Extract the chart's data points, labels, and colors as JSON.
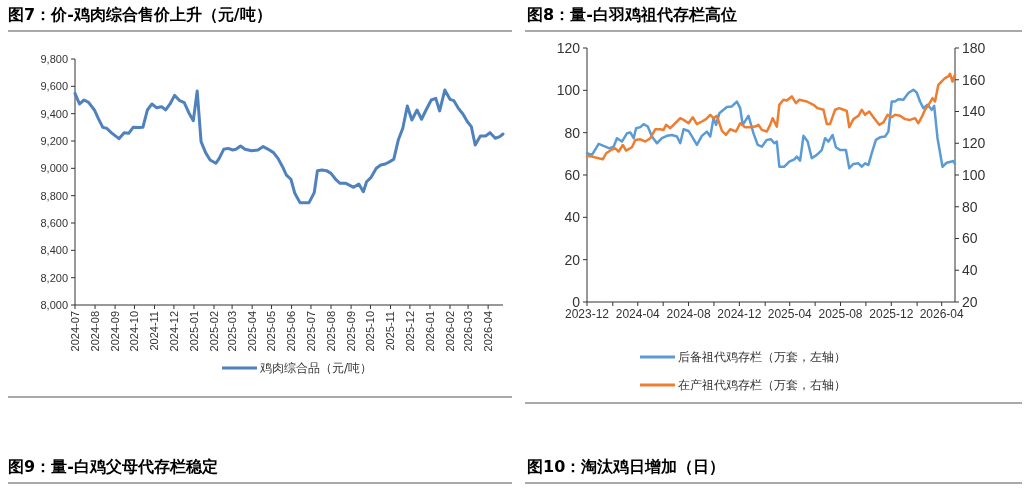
{
  "chart_data": [
    {
      "type": "line",
      "title": "图7：价-鸡肉综合售价上升（元/吨）",
      "legend": "bottom",
      "xlim": [
        "2024-07-01",
        "2026-04-24"
      ],
      "xticks": [
        "2024-07",
        "2024-08",
        "2024-09",
        "2024-10",
        "2024-11",
        "2024-12",
        "2025-01",
        "2025-02",
        "2025-03",
        "2025-04",
        "2025-05",
        "2025-06",
        "2025-07",
        "2025-08",
        "2025-09",
        "2025-10",
        "2025-11",
        "2025-12",
        "2026-01",
        "2026-02",
        "2026-03",
        "2026-04"
      ],
      "ylim": [
        8000,
        9800
      ],
      "yticks": [
        {
          "value": 8000,
          "label": "8,000"
        },
        {
          "value": 8200,
          "label": "8,200"
        },
        {
          "value": 8400,
          "label": "8,400"
        },
        {
          "value": 8600,
          "label": "8,600"
        },
        {
          "value": 8800,
          "label": "8,800"
        },
        {
          "value": 9000,
          "label": "9,000"
        },
        {
          "value": 9200,
          "label": "9,200"
        },
        {
          "value": 9400,
          "label": "9,400"
        },
        {
          "value": 9600,
          "label": "9,600"
        },
        {
          "value": 9800,
          "label": "9,800"
        }
      ],
      "series": [
        {
          "name": "鸡肉综合品（元/吨）",
          "color": "#4f81bd",
          "x": [
            "2024-07-01",
            "2024-07-08",
            "2024-07-15",
            "2024-07-22",
            "2024-07-31",
            "2024-08-06",
            "2024-08-13",
            "2024-08-19",
            "2024-08-26",
            "2024-09-07",
            "2024-09-15",
            "2024-09-22",
            "2024-09-29",
            "2024-10-08",
            "2024-10-14",
            "2024-10-21",
            "2024-10-28",
            "2024-11-04",
            "2024-11-12",
            "2024-11-18",
            "2024-11-25",
            "2024-12-02",
            "2024-12-10",
            "2024-12-17",
            "2024-12-24",
            "2024-12-31",
            "2025-01-06",
            "2025-01-12",
            "2025-01-19",
            "2025-01-26",
            "2025-02-04",
            "2025-02-09",
            "2025-02-16",
            "2025-02-23",
            "2025-03-02",
            "2025-03-07",
            "2025-03-14",
            "2025-03-21",
            "2025-03-31",
            "2025-04-10",
            "2025-04-18",
            "2025-04-26",
            "2025-05-04",
            "2025-05-11",
            "2025-05-18",
            "2025-05-24",
            "2025-05-31",
            "2025-06-06",
            "2025-06-14",
            "2025-06-28",
            "2025-07-06",
            "2025-07-11",
            "2025-07-18",
            "2025-07-25",
            "2025-08-01",
            "2025-08-09",
            "2025-08-15",
            "2025-08-24",
            "2025-09-05",
            "2025-09-13",
            "2025-09-20",
            "2025-09-25",
            "2025-10-02",
            "2025-10-10",
            "2025-10-17",
            "2025-10-24",
            "2025-10-31",
            "2025-11-06",
            "2025-11-13",
            "2025-11-20",
            "2025-11-27",
            "2025-12-04",
            "2025-12-12",
            "2025-12-19",
            "2025-12-26",
            "2026-01-03",
            "2026-01-10",
            "2026-01-16",
            "2026-01-24",
            "2026-02-01",
            "2026-02-07",
            "2026-02-14",
            "2026-02-21",
            "2026-02-28",
            "2026-03-06",
            "2026-03-12",
            "2026-03-20",
            "2026-03-28",
            "2026-04-04",
            "2026-04-12",
            "2026-04-19",
            "2026-04-24"
          ],
          "values": [
            9549,
            9471,
            9500,
            9483,
            9427,
            9366,
            9300,
            9293,
            9261,
            9217,
            9261,
            9256,
            9300,
            9298,
            9300,
            9427,
            9471,
            9444,
            9451,
            9427,
            9471,
            9534,
            9495,
            9480,
            9407,
            9349,
            9566,
            9195,
            9115,
            9061,
            9037,
            9073,
            9139,
            9146,
            9134,
            9139,
            9163,
            9139,
            9129,
            9134,
            9159,
            9139,
            9115,
            9073,
            9012,
            8951,
            8920,
            8817,
            8749,
            8749,
            8822,
            8983,
            8988,
            8983,
            8963,
            8915,
            8890,
            8890,
            8861,
            8885,
            8829,
            8902,
            8934,
            9000,
            9024,
            9032,
            9049,
            9066,
            9207,
            9293,
            9456,
            9354,
            9427,
            9359,
            9427,
            9500,
            9512,
            9420,
            9573,
            9505,
            9495,
            9439,
            9398,
            9341,
            9305,
            9171,
            9237,
            9237,
            9261,
            9220,
            9232,
            9251
          ]
        }
      ]
    },
    {
      "type": "line",
      "title": "图8：量-白羽鸡祖代存栏高位",
      "legend": "bottom",
      "xlim": [
        "2023-12-01",
        "2026-05-03"
      ],
      "xticks": [
        "2023-12",
        {
          "value": "2024-02",
          "label": null
        },
        "2024-04",
        {
          "value": "2024-06",
          "label": null
        },
        "2024-08",
        {
          "value": "2024-10",
          "label": null
        },
        "2024-12",
        {
          "value": "2025-02",
          "label": null
        },
        "2025-04",
        {
          "value": "2025-06",
          "label": null
        },
        "2025-08",
        {
          "value": "2025-10",
          "label": null
        },
        "2025-12",
        {
          "value": "2026-02",
          "label": null
        },
        "2026-04"
      ],
      "ylim": [
        0,
        120
      ],
      "yticks": [
        0,
        20,
        40,
        60,
        80,
        100,
        120
      ],
      "y2lim": [
        20,
        180
      ],
      "y2ticks": [
        20,
        40,
        60,
        80,
        100,
        120,
        140,
        160,
        180
      ],
      "series": [
        {
          "name": "后备祖代鸡存栏（万套，左轴）",
          "color": "#5b9bd5",
          "x": [
            "2023-12-01",
            "2023-12-13",
            "2023-12-29",
            "2024-01-14",
            "2024-01-24",
            "2024-02-03",
            "2024-02-11",
            "2024-02-23",
            "2024-03-06",
            "2024-03-14",
            "2024-03-22",
            "2024-03-28",
            "2024-04-07",
            "2024-04-15",
            "2024-04-25",
            "2024-05-05",
            "2024-05-17",
            "2024-05-29",
            "2024-06-10",
            "2024-06-22",
            "2024-07-04",
            "2024-07-12",
            "2024-07-20",
            "2024-08-01",
            "2024-08-09",
            "2024-08-21",
            "2024-09-02",
            "2024-09-14",
            "2024-09-22",
            "2024-09-30",
            "2024-10-06",
            "2024-10-14",
            "2024-10-24",
            "2024-11-01",
            "2024-11-13",
            "2024-11-25",
            "2024-12-03",
            "2024-12-09",
            "2024-12-23",
            "2025-01-04",
            "2025-01-14",
            "2025-01-24",
            "2025-02-05",
            "2025-02-15",
            "2025-02-23",
            "2025-03-01",
            "2025-03-07",
            "2025-03-19",
            "2025-03-31",
            "2025-04-12",
            "2025-04-18",
            "2025-04-26",
            "2025-05-04",
            "2025-05-14",
            "2025-05-24",
            "2025-06-05",
            "2025-06-17",
            "2025-06-25",
            "2025-07-03",
            "2025-07-13",
            "2025-07-21",
            "2025-07-31",
            "2025-08-14",
            "2025-08-22",
            "2025-09-01",
            "2025-09-13",
            "2025-09-21",
            "2025-09-29",
            "2025-10-07",
            "2025-10-15",
            "2025-10-25",
            "2025-11-04",
            "2025-11-16",
            "2025-11-24",
            "2025-12-02",
            "2025-12-10",
            "2025-12-18",
            "2025-12-30",
            "2026-01-11",
            "2026-01-23",
            "2026-01-31",
            "2026-02-08",
            "2026-02-16",
            "2026-02-26",
            "2026-03-08",
            "2026-03-14",
            "2026-03-22",
            "2026-04-03",
            "2026-04-13",
            "2026-04-23",
            "2026-04-29",
            "2026-05-03"
          ],
          "values": [
            70.3,
            69.5,
            74.7,
            73.4,
            72.6,
            73.4,
            77.4,
            75.8,
            79.7,
            80.1,
            77.4,
            82.1,
            82.6,
            84.0,
            82.9,
            78.2,
            75.0,
            77.4,
            78.5,
            78.9,
            78.2,
            75.0,
            81.6,
            80.8,
            78.2,
            74.2,
            78.5,
            80.5,
            78.2,
            86.8,
            83.7,
            89.2,
            90.8,
            92.1,
            92.4,
            94.7,
            91.6,
            83.7,
            88.0,
            79.7,
            74.2,
            73.4,
            76.6,
            76.9,
            75.0,
            75.8,
            63.9,
            63.9,
            66.3,
            67.4,
            68.7,
            66.8,
            78.5,
            75.8,
            67.9,
            69.5,
            71.8,
            77.4,
            75.8,
            78.9,
            73.1,
            71.8,
            71.8,
            63.2,
            65.2,
            65.5,
            63.9,
            65.5,
            64.7,
            70.3,
            76.6,
            77.8,
            78.2,
            80.5,
            94.7,
            94.7,
            95.8,
            95.5,
            98.7,
            100.3,
            99.0,
            94.7,
            91.6,
            93.2,
            90.8,
            92.7,
            77.4,
            63.9,
            65.8,
            66.3,
            66.6,
            65.2
          ]
        },
        {
          "name": "在产祖代鸡存栏（万套，右轴）",
          "color": "#ed7d31",
          "axis": "y2",
          "x": [
            "2023-12-01",
            "2023-12-13",
            "2023-12-29",
            "2024-01-08",
            "2024-01-16",
            "2024-01-28",
            "2024-02-07",
            "2024-02-15",
            "2024-02-25",
            "2024-03-04",
            "2024-03-18",
            "2024-03-26",
            "2024-04-07",
            "2024-04-19",
            "2024-05-01",
            "2024-05-13",
            "2024-05-25",
            "2024-06-02",
            "2024-06-08",
            "2024-06-18",
            "2024-06-30",
            "2024-07-12",
            "2024-07-20",
            "2024-08-01",
            "2024-08-11",
            "2024-08-21",
            "2024-09-02",
            "2024-09-12",
            "2024-09-22",
            "2024-09-30",
            "2024-10-08",
            "2024-10-20",
            "2024-10-30",
            "2024-11-09",
            "2024-11-23",
            "2024-12-03",
            "2024-12-15",
            "2024-12-27",
            "2025-01-08",
            "2025-01-16",
            "2025-01-24",
            "2025-02-05",
            "2025-02-13",
            "2025-02-19",
            "2025-03-01",
            "2025-03-07",
            "2025-03-17",
            "2025-03-25",
            "2025-04-06",
            "2025-04-16",
            "2025-04-24",
            "2025-05-12",
            "2025-05-28",
            "2025-06-07",
            "2025-06-21",
            "2025-06-29",
            "2025-07-07",
            "2025-07-19",
            "2025-07-29",
            "2025-08-08",
            "2025-08-16",
            "2025-08-22",
            "2025-09-01",
            "2025-09-13",
            "2025-09-21",
            "2025-09-29",
            "2025-10-09",
            "2025-10-19",
            "2025-11-02",
            "2025-11-12",
            "2025-11-22",
            "2025-12-02",
            "2025-12-10",
            "2025-12-22",
            "2026-01-03",
            "2026-01-15",
            "2026-01-27",
            "2026-02-04",
            "2026-02-12",
            "2026-02-20",
            "2026-03-02",
            "2026-03-10",
            "2026-03-16",
            "2026-03-24",
            "2026-04-01",
            "2026-04-09",
            "2026-04-17",
            "2026-04-21",
            "2026-04-27",
            "2026-05-03"
          ],
          "values": [
            112.0,
            111.6,
            110.5,
            109.9,
            113.7,
            115.8,
            116.8,
            114.7,
            118.9,
            115.4,
            117.5,
            122.1,
            122.5,
            121.1,
            123.2,
            128.8,
            128.8,
            128.4,
            131.6,
            129.5,
            132.6,
            135.8,
            134.7,
            132.6,
            136.4,
            132.0,
            133.7,
            135.2,
            137.9,
            135.8,
            137.3,
            128.0,
            125.3,
            128.8,
            127.4,
            132.6,
            130.1,
            130.1,
            130.5,
            131.6,
            128.4,
            127.4,
            131.6,
            135.8,
            130.5,
            144.2,
            147.4,
            146.9,
            149.5,
            145.3,
            147.4,
            146.3,
            144.2,
            142.1,
            141.1,
            132.2,
            132.2,
            141.1,
            142.1,
            141.1,
            140.4,
            130.1,
            135.2,
            137.3,
            141.1,
            137.9,
            140.0,
            136.4,
            131.6,
            133.1,
            137.9,
            136.4,
            137.9,
            137.3,
            135.2,
            134.7,
            135.8,
            132.6,
            136.4,
            141.1,
            144.8,
            148.4,
            146.3,
            156.8,
            158.9,
            161.1,
            162.1,
            163.8,
            158.9,
            163.2
          ]
        }
      ]
    },
    {
      "type": "other",
      "title": "图9：量-白鸡父母代存栏稳定"
    },
    {
      "type": "other",
      "title": "图10：淘汰鸡日增加（日）"
    }
  ]
}
